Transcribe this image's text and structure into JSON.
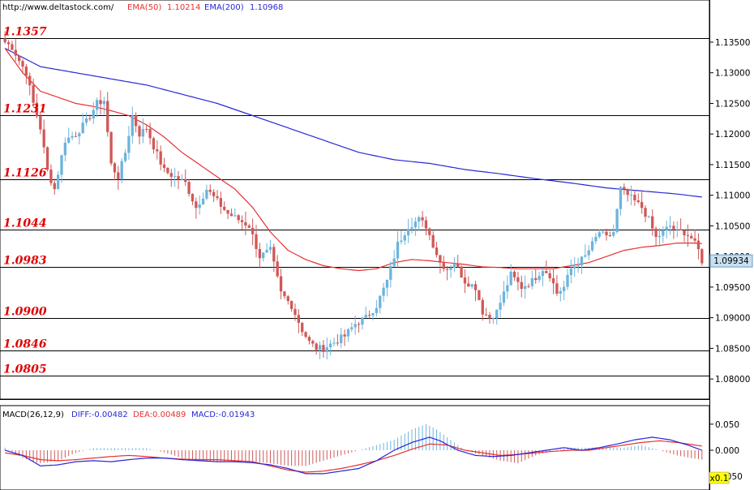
{
  "header": {
    "source": "http://www.deltastock.com/",
    "ema50_label": "EMA(50)",
    "ema50_value": "1.10214",
    "ema200_label": "EMA(200)",
    "ema200_value": "1.10968"
  },
  "macd_header": {
    "label": "MACD(26,12,9)",
    "diff": "DIFF:-0.00482",
    "dea": "DEA:0.00489",
    "macd": "MACD:-0.01943"
  },
  "zoom_badge": "x0.1",
  "colors": {
    "up": "#6db4dc",
    "down": "#d05858",
    "ema50": "#e83030",
    "ema200": "#2828d8",
    "level_text": "#e00000",
    "price_badge": "#c8e0f0"
  },
  "chart_data": [
    {
      "type": "candlestick",
      "title": "",
      "ylim": [
        1.0775,
        1.1395
      ],
      "y_ticks": [
        "1.13500",
        "1.13000",
        "1.12500",
        "1.12000",
        "1.11500",
        "1.11000",
        "1.10500",
        "1.10000",
        "1.09500",
        "1.09000",
        "1.08500",
        "1.08000"
      ],
      "y_tick_values": [
        1.135,
        1.13,
        1.125,
        1.12,
        1.115,
        1.11,
        1.105,
        1.1,
        1.095,
        1.09,
        1.085,
        1.08
      ],
      "last_price_label": "1.09934",
      "last_price": 1.09934,
      "levels": [
        {
          "label": "1.1357",
          "value": 1.1357
        },
        {
          "label": "1.1231",
          "value": 1.1231
        },
        {
          "label": "1.1126",
          "value": 1.1126
        },
        {
          "label": "1.1044",
          "value": 1.1044
        },
        {
          "label": "1.0983",
          "value": 1.0983
        },
        {
          "label": "1.0900",
          "value": 1.09
        },
        {
          "label": "1.0846",
          "value": 1.0846
        },
        {
          "label": "1.0805",
          "value": 1.0805
        }
      ],
      "close_anchors": [
        [
          0,
          1.135
        ],
        [
          2,
          1.1342
        ],
        [
          4,
          1.132
        ],
        [
          6,
          1.13
        ],
        [
          8,
          1.125
        ],
        [
          10,
          1.121
        ],
        [
          12,
          1.114
        ],
        [
          14,
          1.111
        ],
        [
          17,
          1.119
        ],
        [
          20,
          1.12
        ],
        [
          23,
          1.122
        ],
        [
          26,
          1.125
        ],
        [
          28,
          1.1255
        ],
        [
          30,
          1.115
        ],
        [
          32,
          1.113
        ],
        [
          34,
          1.117
        ],
        [
          36,
          1.123
        ],
        [
          38,
          1.12
        ],
        [
          40,
          1.121
        ],
        [
          42,
          1.118
        ],
        [
          45,
          1.114
        ],
        [
          48,
          1.113
        ],
        [
          51,
          1.112
        ],
        [
          54,
          1.108
        ],
        [
          57,
          1.111
        ],
        [
          60,
          1.109
        ],
        [
          63,
          1.107
        ],
        [
          66,
          1.106
        ],
        [
          69,
          1.105
        ],
        [
          72,
          1.1
        ],
        [
          75,
          1.101
        ],
        [
          78,
          1.094
        ],
        [
          81,
          1.092
        ],
        [
          84,
          1.088
        ],
        [
          86,
          1.086
        ],
        [
          88,
          1.085
        ],
        [
          90,
          1.085
        ],
        [
          93,
          1.086
        ],
        [
          96,
          1.087
        ],
        [
          99,
          1.089
        ],
        [
          102,
          1.09
        ],
        [
          105,
          1.092
        ],
        [
          108,
          1.096
        ],
        [
          111,
          1.102
        ],
        [
          114,
          1.105
        ],
        [
          117,
          1.106
        ],
        [
          119,
          1.105
        ],
        [
          121,
          1.102
        ],
        [
          123,
          1.099
        ],
        [
          125,
          1.098
        ],
        [
          127,
          1.099
        ],
        [
          130,
          1.096
        ],
        [
          133,
          1.095
        ],
        [
          135,
          1.091
        ],
        [
          137,
          1.09
        ],
        [
          139,
          1.091
        ],
        [
          141,
          1.094
        ],
        [
          143,
          1.097
        ],
        [
          146,
          1.095
        ],
        [
          149,
          1.096
        ],
        [
          152,
          1.098
        ],
        [
          154,
          1.097
        ],
        [
          156,
          1.094
        ],
        [
          158,
          1.095
        ],
        [
          160,
          1.098
        ],
        [
          162,
          1.099
        ],
        [
          164,
          1.1
        ],
        [
          166,
          1.102
        ],
        [
          168,
          1.104
        ],
        [
          170,
          1.103
        ],
        [
          172,
          1.104
        ],
        [
          174,
          1.111
        ],
        [
          176,
          1.11
        ],
        [
          178,
          1.109
        ],
        [
          180,
          1.108
        ],
        [
          182,
          1.106
        ],
        [
          184,
          1.103
        ],
        [
          186,
          1.104
        ],
        [
          188,
          1.105
        ],
        [
          190,
          1.104
        ],
        [
          192,
          1.104
        ],
        [
          194,
          1.103
        ],
        [
          196,
          1.101
        ],
        [
          197,
          1.0993
        ]
      ],
      "ema50_anchors": [
        [
          0,
          1.134
        ],
        [
          5,
          1.13
        ],
        [
          10,
          1.127
        ],
        [
          15,
          1.126
        ],
        [
          20,
          1.125
        ],
        [
          25,
          1.1245
        ],
        [
          30,
          1.1238
        ],
        [
          35,
          1.123
        ],
        [
          40,
          1.1215
        ],
        [
          45,
          1.1195
        ],
        [
          50,
          1.117
        ],
        [
          55,
          1.115
        ],
        [
          60,
          1.113
        ],
        [
          65,
          1.111
        ],
        [
          70,
          1.108
        ],
        [
          75,
          1.104
        ],
        [
          80,
          1.101
        ],
        [
          85,
          1.0995
        ],
        [
          90,
          1.0985
        ],
        [
          95,
          1.098
        ],
        [
          100,
          1.0977
        ],
        [
          105,
          1.098
        ],
        [
          110,
          1.099
        ],
        [
          115,
          1.0995
        ],
        [
          120,
          1.0993
        ],
        [
          125,
          1.099
        ],
        [
          130,
          1.0987
        ],
        [
          135,
          1.0983
        ],
        [
          140,
          1.0982
        ],
        [
          145,
          1.098
        ],
        [
          150,
          1.098
        ],
        [
          155,
          1.098
        ],
        [
          160,
          1.0985
        ],
        [
          165,
          1.099
        ],
        [
          170,
          1.1
        ],
        [
          175,
          1.101
        ],
        [
          180,
          1.1015
        ],
        [
          185,
          1.1018
        ],
        [
          190,
          1.1022
        ],
        [
          195,
          1.1022
        ],
        [
          197,
          1.1021
        ]
      ],
      "ema200_anchors": [
        [
          0,
          1.134
        ],
        [
          5,
          1.1325
        ],
        [
          10,
          1.131
        ],
        [
          20,
          1.13
        ],
        [
          30,
          1.129
        ],
        [
          40,
          1.128
        ],
        [
          50,
          1.1265
        ],
        [
          60,
          1.125
        ],
        [
          70,
          1.123
        ],
        [
          80,
          1.121
        ],
        [
          90,
          1.119
        ],
        [
          100,
          1.117
        ],
        [
          110,
          1.1158
        ],
        [
          120,
          1.1152
        ],
        [
          130,
          1.1142
        ],
        [
          140,
          1.1135
        ],
        [
          150,
          1.1127
        ],
        [
          160,
          1.112
        ],
        [
          170,
          1.1112
        ],
        [
          180,
          1.1107
        ],
        [
          190,
          1.1102
        ],
        [
          197,
          1.1097
        ]
      ],
      "n_bars": 198
    },
    {
      "type": "bar",
      "title": "MACD(26,12,9)",
      "ylim": [
        -0.07,
        0.07
      ],
      "y_ticks": [
        "0.050",
        "0.000",
        "-0.050"
      ],
      "y_tick_values": [
        0.05,
        0.0,
        -0.05
      ],
      "hist_anchors": [
        [
          0,
          0.005
        ],
        [
          5,
          -0.015
        ],
        [
          10,
          -0.025
        ],
        [
          15,
          -0.02
        ],
        [
          20,
          -0.005
        ],
        [
          25,
          0.004
        ],
        [
          30,
          0.004
        ],
        [
          35,
          0.004
        ],
        [
          40,
          0.004
        ],
        [
          45,
          -0.004
        ],
        [
          50,
          -0.015
        ],
        [
          55,
          -0.02
        ],
        [
          60,
          -0.022
        ],
        [
          65,
          -0.022
        ],
        [
          70,
          -0.022
        ],
        [
          75,
          -0.025
        ],
        [
          80,
          -0.03
        ],
        [
          85,
          -0.03
        ],
        [
          90,
          -0.02
        ],
        [
          95,
          -0.01
        ],
        [
          100,
          0.0
        ],
        [
          105,
          0.01
        ],
        [
          110,
          0.02
        ],
        [
          115,
          0.04
        ],
        [
          119,
          0.05
        ],
        [
          122,
          0.04
        ],
        [
          126,
          0.02
        ],
        [
          130,
          0.0
        ],
        [
          135,
          -0.01
        ],
        [
          140,
          -0.02
        ],
        [
          145,
          -0.025
        ],
        [
          150,
          -0.01
        ],
        [
          155,
          0.0
        ],
        [
          160,
          0.005
        ],
        [
          165,
          0.005
        ],
        [
          170,
          0.005
        ],
        [
          175,
          0.005
        ],
        [
          180,
          0.01
        ],
        [
          185,
          0.0
        ],
        [
          190,
          -0.01
        ],
        [
          194,
          -0.015
        ],
        [
          197,
          -0.018
        ]
      ],
      "diff_anchors": [
        [
          0,
          0.0
        ],
        [
          5,
          -0.01
        ],
        [
          10,
          -0.03
        ],
        [
          15,
          -0.028
        ],
        [
          20,
          -0.022
        ],
        [
          25,
          -0.02
        ],
        [
          30,
          -0.022
        ],
        [
          35,
          -0.018
        ],
        [
          40,
          -0.015
        ],
        [
          45,
          -0.015
        ],
        [
          50,
          -0.018
        ],
        [
          55,
          -0.02
        ],
        [
          60,
          -0.022
        ],
        [
          65,
          -0.022
        ],
        [
          70,
          -0.024
        ],
        [
          75,
          -0.028
        ],
        [
          80,
          -0.035
        ],
        [
          85,
          -0.045
        ],
        [
          90,
          -0.045
        ],
        [
          95,
          -0.04
        ],
        [
          100,
          -0.035
        ],
        [
          105,
          -0.02
        ],
        [
          110,
          0.0
        ],
        [
          115,
          0.015
        ],
        [
          120,
          0.025
        ],
        [
          123,
          0.018
        ],
        [
          128,
          0.0
        ],
        [
          133,
          -0.01
        ],
        [
          138,
          -0.012
        ],
        [
          143,
          -0.01
        ],
        [
          148,
          -0.005
        ],
        [
          153,
          0.0
        ],
        [
          158,
          0.005
        ],
        [
          163,
          0.0
        ],
        [
          168,
          0.005
        ],
        [
          173,
          0.012
        ],
        [
          178,
          0.02
        ],
        [
          183,
          0.025
        ],
        [
          188,
          0.02
        ],
        [
          193,
          0.01
        ],
        [
          197,
          0.0
        ]
      ],
      "dea_anchors": [
        [
          0,
          -0.005
        ],
        [
          5,
          -0.01
        ],
        [
          10,
          -0.018
        ],
        [
          15,
          -0.02
        ],
        [
          20,
          -0.018
        ],
        [
          25,
          -0.015
        ],
        [
          30,
          -0.012
        ],
        [
          35,
          -0.01
        ],
        [
          40,
          -0.012
        ],
        [
          45,
          -0.015
        ],
        [
          50,
          -0.017
        ],
        [
          55,
          -0.018
        ],
        [
          60,
          -0.018
        ],
        [
          65,
          -0.02
        ],
        [
          70,
          -0.022
        ],
        [
          75,
          -0.03
        ],
        [
          80,
          -0.038
        ],
        [
          85,
          -0.042
        ],
        [
          90,
          -0.04
        ],
        [
          95,
          -0.035
        ],
        [
          100,
          -0.028
        ],
        [
          105,
          -0.02
        ],
        [
          110,
          -0.01
        ],
        [
          115,
          0.002
        ],
        [
          120,
          0.012
        ],
        [
          125,
          0.01
        ],
        [
          130,
          0.0
        ],
        [
          135,
          -0.005
        ],
        [
          140,
          -0.01
        ],
        [
          145,
          -0.008
        ],
        [
          150,
          -0.005
        ],
        [
          155,
          -0.002
        ],
        [
          160,
          0.0
        ],
        [
          165,
          0.0
        ],
        [
          170,
          0.005
        ],
        [
          175,
          0.01
        ],
        [
          180,
          0.015
        ],
        [
          185,
          0.018
        ],
        [
          190,
          0.015
        ],
        [
          195,
          0.01
        ],
        [
          197,
          0.008
        ]
      ]
    }
  ]
}
